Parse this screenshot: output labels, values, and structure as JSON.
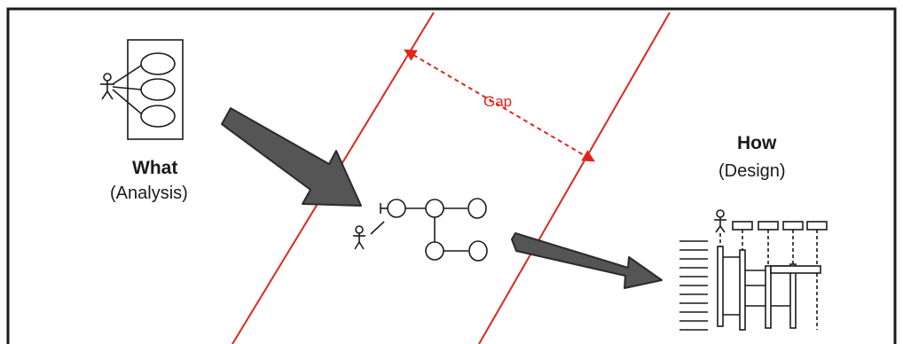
{
  "labels": {
    "what_title": "What",
    "what_subtitle": "(Analysis)",
    "how_title": "How",
    "how_subtitle": "(Design)",
    "gap": "Gap"
  },
  "colors": {
    "frame": "#1a1a1a",
    "gap_lines": "#e0261c",
    "arrow_fill": "#555555",
    "arrow_stroke": "#2a2a2a",
    "ink": "#1a1a1a"
  },
  "icons": [
    "use-case-diagram-icon",
    "actor-icon",
    "robustness-diagram-icon",
    "sequence-diagram-icon"
  ]
}
